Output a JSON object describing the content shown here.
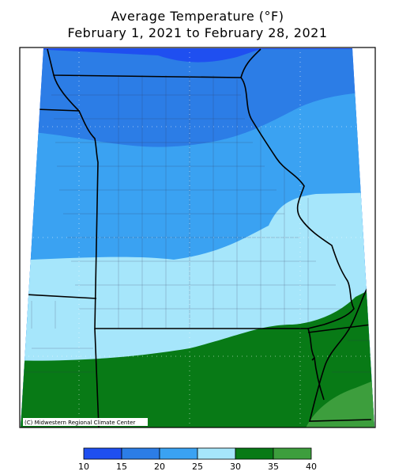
{
  "map": {
    "title": "Average Temperature (°F)",
    "subtitle": "February 1, 2021 to February 28, 2021",
    "credit": "(C) Midwestern Regional Climate Center",
    "legend": {
      "bins": [
        10,
        15,
        20,
        25,
        30,
        35,
        40
      ],
      "colors": [
        "#1f4ff0",
        "#2c7de6",
        "#3aa2f2",
        "#a6e6fb",
        "#087a16",
        "#3d9e3d"
      ]
    }
  }
}
